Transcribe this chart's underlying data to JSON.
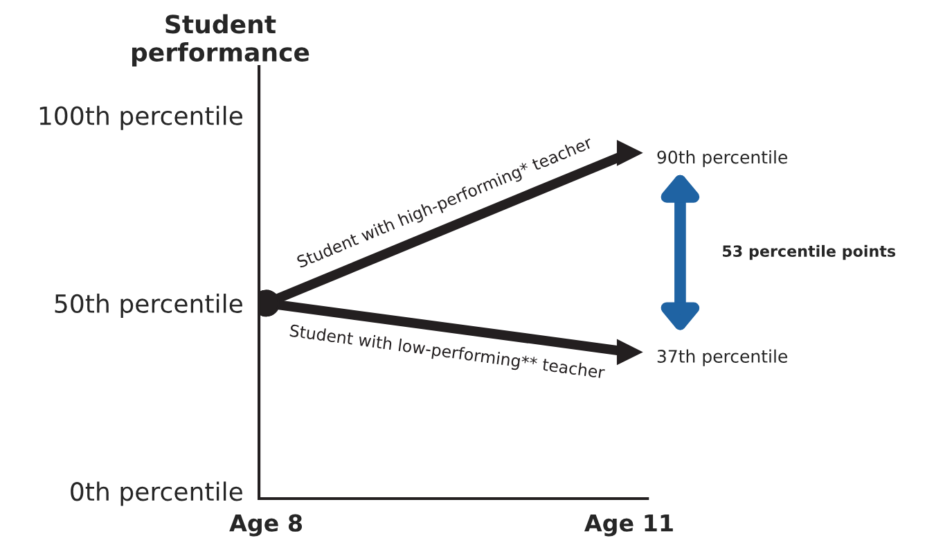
{
  "chart_data": {
    "type": "line",
    "ylabel": "Student\nperformance",
    "categories": [
      "Age 8",
      "Age 11"
    ],
    "series": [
      {
        "name": "Student with high-performing* teacher",
        "color": "#231f20",
        "values": [
          50,
          90
        ],
        "value_labels": [
          null,
          "90th percentile"
        ]
      },
      {
        "name": "Student with low-performing** teacher",
        "color": "#231f20",
        "values": [
          50,
          37
        ],
        "value_labels": [
          null,
          "37th percentile"
        ]
      }
    ],
    "ylim": [
      -2,
      113
    ],
    "yticks": [
      {
        "value": 0,
        "label": "0th percentile"
      },
      {
        "value": 50,
        "label": "50th percentile"
      },
      {
        "value": 100,
        "label": "100th percentile"
      }
    ],
    "annotations": [
      "53 percentile points"
    ],
    "marker": "circle",
    "legend": false,
    "grid": false
  }
}
